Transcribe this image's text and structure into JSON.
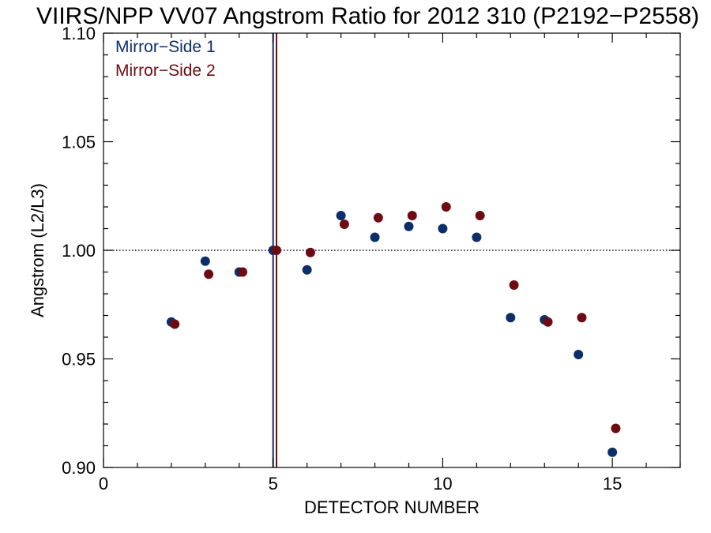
{
  "chart_data": {
    "type": "scatter",
    "title": "VIIRS/NPP VV07 Angstrom Ratio for 2012 310 (P2192−P2558)",
    "xlabel": "DETECTOR NUMBER",
    "ylabel": "Angstrom (L2/L3)",
    "xlim": [
      0,
      17
    ],
    "ylim": [
      0.9,
      1.1
    ],
    "x_ticks": [
      "0",
      "5",
      "10",
      "15"
    ],
    "y_ticks": [
      "0.90",
      "0.95",
      "1.00",
      "1.05",
      "1.10"
    ],
    "reference_line_y": 1.0,
    "legend_position": "top-left",
    "series": [
      {
        "name": "Mirror−Side 1",
        "color": "#0c2f6b",
        "x": [
          2,
          3,
          4,
          5,
          6,
          7,
          8,
          9,
          10,
          11,
          12,
          13,
          14,
          15
        ],
        "y": [
          0.967,
          0.995,
          0.99,
          1.0,
          0.991,
          1.016,
          1.006,
          1.011,
          1.01,
          1.006,
          0.969,
          0.968,
          0.952,
          0.907
        ],
        "vline_x": 5.0
      },
      {
        "name": "Mirror−Side 2",
        "color": "#6e0b12",
        "x": [
          2.1,
          3.1,
          4.1,
          5.1,
          6.1,
          7.1,
          8.1,
          9.1,
          10.1,
          11.1,
          12.1,
          13.1,
          14.1,
          15.1
        ],
        "y": [
          0.966,
          0.989,
          0.99,
          1.0,
          0.999,
          1.012,
          1.015,
          1.016,
          1.02,
          1.016,
          0.984,
          0.967,
          0.969,
          0.918
        ],
        "vline_x": 5.1
      }
    ]
  }
}
